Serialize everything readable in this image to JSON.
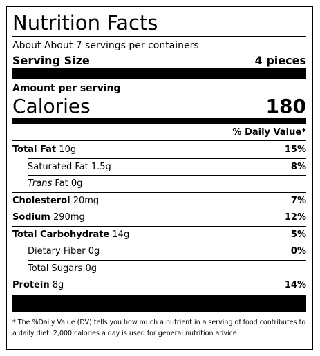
{
  "header": {
    "title": "Nutrition Facts",
    "servings": "About About 7 servings per containers",
    "serving_size_label": "Serving Size",
    "serving_size_value": "4 pieces"
  },
  "calories": {
    "amount_label": "Amount per serving",
    "label": "Calories",
    "value": "180"
  },
  "table": {
    "dv_header": "% Daily Value*",
    "rows": [
      {
        "label": "Total Fat",
        "amount": "10g",
        "dv": "15%",
        "bold": true
      },
      {
        "label": "Saturated Fat",
        "amount": "1.5g",
        "dv": "8%",
        "indent": true
      },
      {
        "italic_prefix": "Trans",
        "label": "Fat",
        "amount": "0g",
        "indent": true
      },
      {
        "label": "Cholesterol",
        "amount": "20mg",
        "dv": "7%",
        "bold": true
      },
      {
        "label": "Sodium",
        "amount": "290mg",
        "dv": "12%",
        "bold": true
      },
      {
        "label": "Total Carbohydrate",
        "amount": "14g",
        "dv": "5%",
        "bold": true
      },
      {
        "label": "Dietary Fiber",
        "amount": "0g",
        "dv": "0%",
        "indent": true
      },
      {
        "label": "Total Sugars",
        "amount": "0g",
        "indent": true
      },
      {
        "label": "Protein",
        "amount": "8g",
        "dv": "14%",
        "bold": true
      }
    ]
  },
  "footnote": "* The %Daily Value (DV) tells you how much a nutrient in a serving of food contributes to a daily diet. 2,000 calories a day is used for general nutrition advice."
}
